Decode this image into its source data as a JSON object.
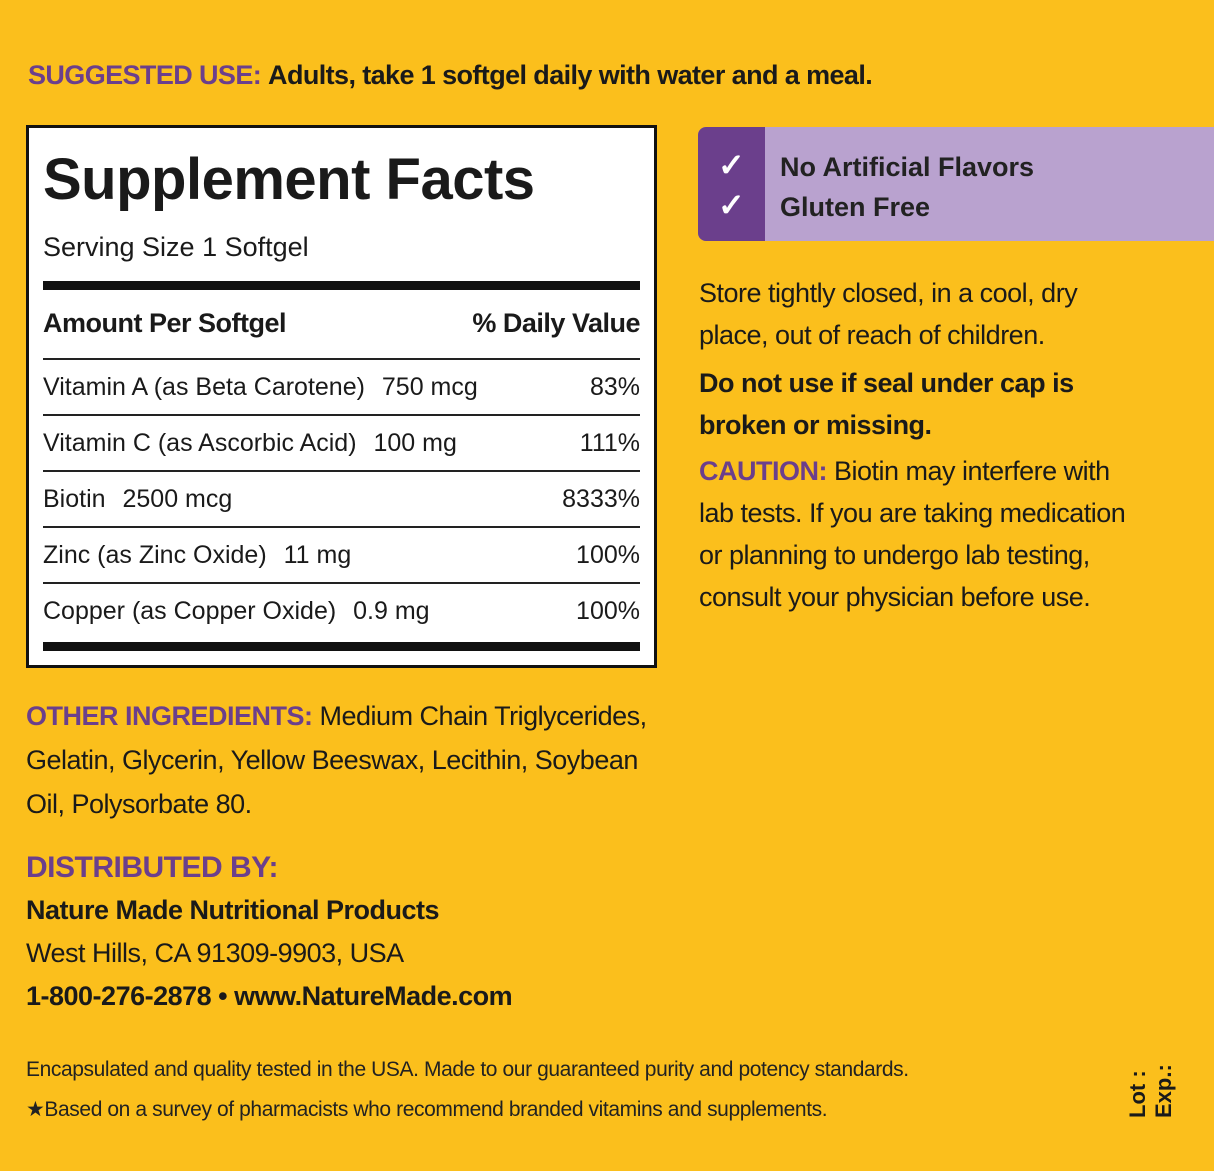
{
  "suggested_use": {
    "label": "SUGGESTED USE:",
    "text": "Adults, take 1 softgel daily with water and a meal."
  },
  "supplement_facts": {
    "title": "Supplement Facts",
    "serving_size": "Serving Size 1 Softgel",
    "header": {
      "amount": "Amount Per Softgel",
      "daily_value": "% Daily Value"
    },
    "rows": [
      {
        "nutrient": "Vitamin A (as Beta Carotene)",
        "amount": "750 mcg",
        "daily_value": "83%"
      },
      {
        "nutrient": "Vitamin C (as Ascorbic Acid)",
        "amount": "100 mg",
        "daily_value": "111%"
      },
      {
        "nutrient": "Biotin",
        "amount": "2500 mcg",
        "daily_value": "8333%"
      },
      {
        "nutrient": "Zinc (as Zinc Oxide)",
        "amount": "11 mg",
        "daily_value": "100%"
      },
      {
        "nutrient": "Copper (as Copper Oxide)",
        "amount": "0.9 mg",
        "daily_value": "100%"
      }
    ]
  },
  "badges": [
    "No Artificial Flavors",
    "Gluten Free"
  ],
  "storage": "Store tightly closed, in a cool, dry place, out of reach of children.",
  "warning": "Do not use if seal under cap is broken or missing.",
  "caution": {
    "label": "CAUTION:",
    "text": "Biotin may interfere with lab tests. If you are taking medication or planning to undergo lab testing, consult your physician before use."
  },
  "other_ingredients": {
    "label": "OTHER INGREDIENTS:",
    "text": "Medium Chain Triglycerides, Gelatin, Glycerin, Yellow Beeswax, Lecithin, Soybean Oil, Polysorbate 80."
  },
  "distributor": {
    "label": "DISTRIBUTED BY:",
    "name": "Nature Made Nutritional Products",
    "address": "West Hills, CA 91309-9903, USA",
    "phone": "1-800-276-2878",
    "website": "www.NatureMade.com"
  },
  "footer": [
    "Encapsulated and quality tested in the USA. Made to our guaranteed purity and potency standards.",
    "★Based on a survey of pharmacists who recommend branded vitamins and supplements."
  ],
  "lot": "Lot :",
  "exp": "Exp.:"
}
